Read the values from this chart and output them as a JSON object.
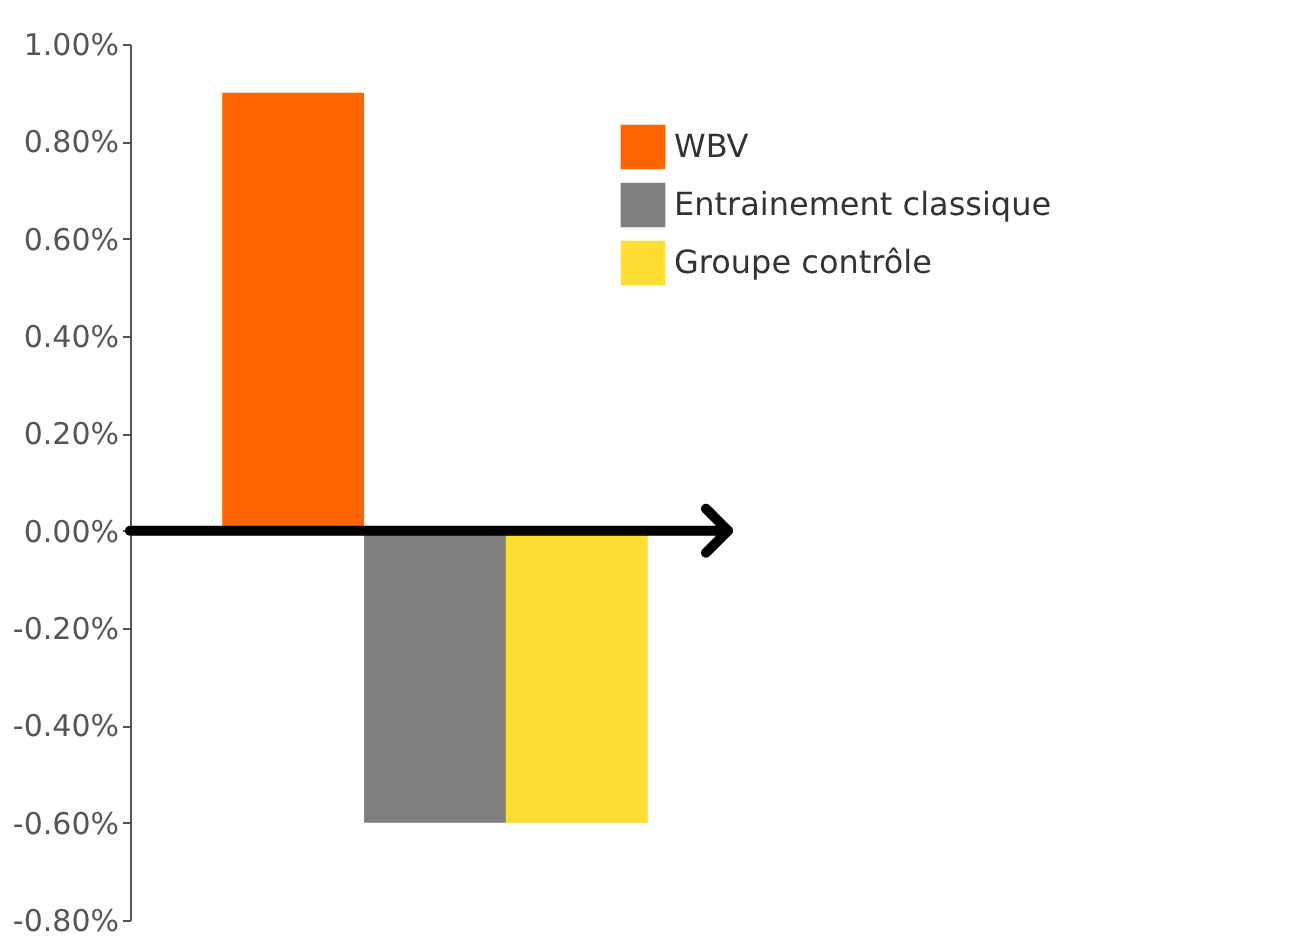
{
  "chart_data": {
    "type": "bar",
    "categories": [
      null
    ],
    "series": [
      {
        "name": "WBV",
        "color": "#ff6600",
        "values": [
          0.9
        ]
      },
      {
        "name": "Entrainement classique",
        "color": "#808080",
        "values": [
          -0.6
        ]
      },
      {
        "name": "Groupe contrôle",
        "color": "#ffdd33",
        "values": [
          -0.6
        ]
      }
    ],
    "ylim": [
      -0.8,
      1.0
    ],
    "yticks": [
      {
        "value": -0.8,
        "label": "-0.80%"
      },
      {
        "value": -0.6,
        "label": "-0.60%"
      },
      {
        "value": -0.4,
        "label": "-0.40%"
      },
      {
        "value": -0.2,
        "label": "-0.20%"
      },
      {
        "value": 0,
        "label": "0.00%"
      },
      {
        "value": 0.2,
        "label": "0.20%"
      },
      {
        "value": 0.4,
        "label": "0.40%"
      },
      {
        "value": 0.6,
        "label": "0.60%"
      },
      {
        "value": 0.8,
        "label": "0.80%"
      },
      {
        "value": 1.0,
        "label": "1.00%"
      }
    ],
    "ref_lines": [
      {
        "axis": "y",
        "value": 0,
        "color": "#000000"
      }
    ],
    "legend": "top right",
    "grid": false
  }
}
